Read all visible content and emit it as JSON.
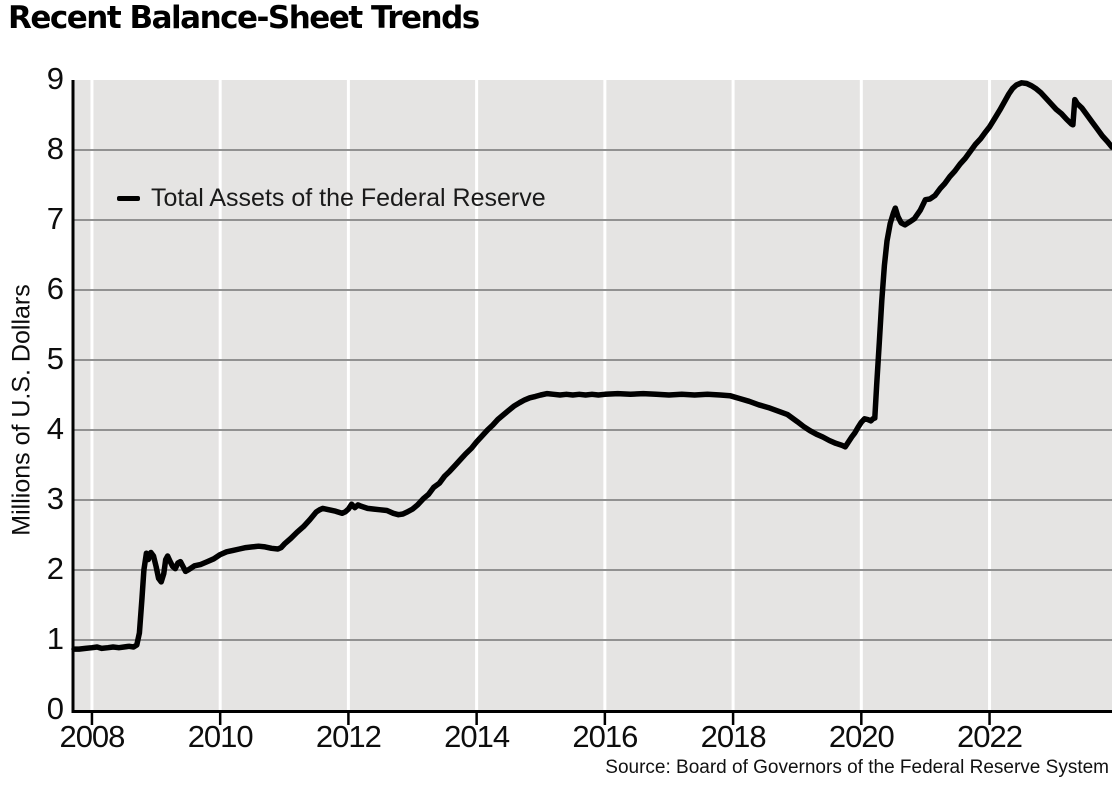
{
  "chart": {
    "title": "Recent Balance-Sheet Trends",
    "ylabel": "Millions of U.S. Dollars",
    "series_label": "Total Assets of the Federal Reserve",
    "source": "Source: Board of Governors of the Federal Reserve System"
  },
  "chart_data": {
    "type": "line",
    "title": "Recent Balance-Sheet Trends",
    "xlabel": "",
    "ylabel": "Millions of U.S. Dollars",
    "xlim": [
      2007.72,
      2023.91
    ],
    "ylim": [
      0,
      9
    ],
    "x_ticks": [
      2008,
      2010,
      2012,
      2014,
      2016,
      2018,
      2020,
      2022
    ],
    "y_ticks": [
      0,
      1,
      2,
      3,
      4,
      5,
      6,
      7,
      8,
      9
    ],
    "grid": {
      "horizontal": true,
      "vertical": true
    },
    "legend": {
      "position": "upper-left-inside",
      "entries": [
        "Total Assets of the Federal Reserve"
      ]
    },
    "source": "Source: Board of Governors of the Federal Reserve System",
    "colors": {
      "plot_background": "#e5e4e3",
      "horizontal_grid": "#919191",
      "vertical_grid": "#ffffff",
      "axis": "#000000",
      "line": "#000000",
      "text": "#0d0d0d"
    },
    "series": [
      {
        "name": "Total Assets of the Federal Reserve",
        "color": "#000000",
        "points": [
          [
            2007.72,
            0.87
          ],
          [
            2007.8,
            0.87
          ],
          [
            2007.9,
            0.88
          ],
          [
            2008.0,
            0.89
          ],
          [
            2008.08,
            0.9
          ],
          [
            2008.15,
            0.88
          ],
          [
            2008.25,
            0.89
          ],
          [
            2008.33,
            0.9
          ],
          [
            2008.42,
            0.89
          ],
          [
            2008.5,
            0.9
          ],
          [
            2008.58,
            0.91
          ],
          [
            2008.65,
            0.9
          ],
          [
            2008.7,
            0.93
          ],
          [
            2008.74,
            1.1
          ],
          [
            2008.78,
            1.6
          ],
          [
            2008.81,
            2.0
          ],
          [
            2008.85,
            2.24
          ],
          [
            2008.88,
            2.15
          ],
          [
            2008.92,
            2.25
          ],
          [
            2008.96,
            2.2
          ],
          [
            2009.0,
            2.05
          ],
          [
            2009.04,
            1.88
          ],
          [
            2009.08,
            1.83
          ],
          [
            2009.12,
            1.95
          ],
          [
            2009.15,
            2.15
          ],
          [
            2009.18,
            2.2
          ],
          [
            2009.22,
            2.12
          ],
          [
            2009.26,
            2.05
          ],
          [
            2009.3,
            2.02
          ],
          [
            2009.34,
            2.1
          ],
          [
            2009.38,
            2.12
          ],
          [
            2009.42,
            2.05
          ],
          [
            2009.46,
            1.98
          ],
          [
            2009.5,
            2.0
          ],
          [
            2009.55,
            2.03
          ],
          [
            2009.6,
            2.06
          ],
          [
            2009.7,
            2.08
          ],
          [
            2009.8,
            2.12
          ],
          [
            2009.9,
            2.16
          ],
          [
            2010.0,
            2.22
          ],
          [
            2010.1,
            2.26
          ],
          [
            2010.2,
            2.28
          ],
          [
            2010.3,
            2.3
          ],
          [
            2010.4,
            2.32
          ],
          [
            2010.5,
            2.33
          ],
          [
            2010.6,
            2.34
          ],
          [
            2010.7,
            2.33
          ],
          [
            2010.8,
            2.31
          ],
          [
            2010.9,
            2.3
          ],
          [
            2010.95,
            2.32
          ],
          [
            2011.0,
            2.37
          ],
          [
            2011.1,
            2.45
          ],
          [
            2011.2,
            2.54
          ],
          [
            2011.3,
            2.62
          ],
          [
            2011.4,
            2.72
          ],
          [
            2011.5,
            2.83
          ],
          [
            2011.55,
            2.86
          ],
          [
            2011.6,
            2.88
          ],
          [
            2011.7,
            2.86
          ],
          [
            2011.8,
            2.84
          ],
          [
            2011.9,
            2.81
          ],
          [
            2011.95,
            2.83
          ],
          [
            2012.0,
            2.87
          ],
          [
            2012.05,
            2.94
          ],
          [
            2012.1,
            2.89
          ],
          [
            2012.15,
            2.93
          ],
          [
            2012.2,
            2.91
          ],
          [
            2012.3,
            2.88
          ],
          [
            2012.4,
            2.87
          ],
          [
            2012.5,
            2.86
          ],
          [
            2012.6,
            2.85
          ],
          [
            2012.7,
            2.81
          ],
          [
            2012.78,
            2.79
          ],
          [
            2012.85,
            2.8
          ],
          [
            2012.92,
            2.83
          ],
          [
            2013.0,
            2.87
          ],
          [
            2013.08,
            2.93
          ],
          [
            2013.17,
            3.02
          ],
          [
            2013.25,
            3.08
          ],
          [
            2013.33,
            3.18
          ],
          [
            2013.42,
            3.24
          ],
          [
            2013.5,
            3.34
          ],
          [
            2013.58,
            3.41
          ],
          [
            2013.67,
            3.5
          ],
          [
            2013.75,
            3.58
          ],
          [
            2013.83,
            3.66
          ],
          [
            2013.92,
            3.74
          ],
          [
            2014.0,
            3.83
          ],
          [
            2014.08,
            3.91
          ],
          [
            2014.17,
            4.0
          ],
          [
            2014.25,
            4.07
          ],
          [
            2014.33,
            4.15
          ],
          [
            2014.42,
            4.22
          ],
          [
            2014.5,
            4.28
          ],
          [
            2014.58,
            4.34
          ],
          [
            2014.67,
            4.39
          ],
          [
            2014.75,
            4.43
          ],
          [
            2014.83,
            4.46
          ],
          [
            2014.92,
            4.48
          ],
          [
            2015.0,
            4.5
          ],
          [
            2015.1,
            4.52
          ],
          [
            2015.2,
            4.51
          ],
          [
            2015.3,
            4.5
          ],
          [
            2015.4,
            4.51
          ],
          [
            2015.5,
            4.5
          ],
          [
            2015.6,
            4.51
          ],
          [
            2015.7,
            4.5
          ],
          [
            2015.8,
            4.51
          ],
          [
            2015.9,
            4.5
          ],
          [
            2016.0,
            4.51
          ],
          [
            2016.2,
            4.52
          ],
          [
            2016.4,
            4.51
          ],
          [
            2016.6,
            4.52
          ],
          [
            2016.8,
            4.51
          ],
          [
            2017.0,
            4.5
          ],
          [
            2017.2,
            4.51
          ],
          [
            2017.4,
            4.5
          ],
          [
            2017.6,
            4.51
          ],
          [
            2017.8,
            4.5
          ],
          [
            2017.95,
            4.49
          ],
          [
            2018.1,
            4.45
          ],
          [
            2018.25,
            4.41
          ],
          [
            2018.4,
            4.36
          ],
          [
            2018.55,
            4.32
          ],
          [
            2018.7,
            4.27
          ],
          [
            2018.85,
            4.22
          ],
          [
            2019.0,
            4.12
          ],
          [
            2019.1,
            4.05
          ],
          [
            2019.2,
            3.99
          ],
          [
            2019.3,
            3.94
          ],
          [
            2019.4,
            3.9
          ],
          [
            2019.5,
            3.85
          ],
          [
            2019.6,
            3.81
          ],
          [
            2019.7,
            3.78
          ],
          [
            2019.75,
            3.76
          ],
          [
            2019.8,
            3.83
          ],
          [
            2019.85,
            3.9
          ],
          [
            2019.9,
            3.96
          ],
          [
            2019.95,
            4.04
          ],
          [
            2020.0,
            4.11
          ],
          [
            2020.05,
            4.16
          ],
          [
            2020.1,
            4.15
          ],
          [
            2020.15,
            4.13
          ],
          [
            2020.18,
            4.16
          ],
          [
            2020.21,
            4.17
          ],
          [
            2020.24,
            4.65
          ],
          [
            2020.28,
            5.25
          ],
          [
            2020.32,
            5.85
          ],
          [
            2020.36,
            6.35
          ],
          [
            2020.4,
            6.7
          ],
          [
            2020.45,
            6.95
          ],
          [
            2020.5,
            7.1
          ],
          [
            2020.53,
            7.17
          ],
          [
            2020.57,
            7.05
          ],
          [
            2020.62,
            6.96
          ],
          [
            2020.68,
            6.93
          ],
          [
            2020.75,
            6.97
          ],
          [
            2020.83,
            7.02
          ],
          [
            2020.92,
            7.14
          ],
          [
            2021.0,
            7.29
          ],
          [
            2021.07,
            7.3
          ],
          [
            2021.15,
            7.35
          ],
          [
            2021.23,
            7.45
          ],
          [
            2021.3,
            7.52
          ],
          [
            2021.38,
            7.62
          ],
          [
            2021.46,
            7.7
          ],
          [
            2021.54,
            7.8
          ],
          [
            2021.62,
            7.88
          ],
          [
            2021.7,
            7.98
          ],
          [
            2021.78,
            8.08
          ],
          [
            2021.86,
            8.16
          ],
          [
            2021.94,
            8.26
          ],
          [
            2022.0,
            8.33
          ],
          [
            2022.08,
            8.45
          ],
          [
            2022.16,
            8.57
          ],
          [
            2022.24,
            8.7
          ],
          [
            2022.3,
            8.8
          ],
          [
            2022.36,
            8.88
          ],
          [
            2022.42,
            8.93
          ],
          [
            2022.5,
            8.96
          ],
          [
            2022.58,
            8.95
          ],
          [
            2022.65,
            8.92
          ],
          [
            2022.72,
            8.88
          ],
          [
            2022.8,
            8.82
          ],
          [
            2022.88,
            8.74
          ],
          [
            2022.96,
            8.66
          ],
          [
            2023.04,
            8.58
          ],
          [
            2023.12,
            8.52
          ],
          [
            2023.2,
            8.44
          ],
          [
            2023.28,
            8.37
          ],
          [
            2023.3,
            8.36
          ],
          [
            2023.33,
            8.72
          ],
          [
            2023.37,
            8.66
          ],
          [
            2023.44,
            8.6
          ],
          [
            2023.52,
            8.5
          ],
          [
            2023.6,
            8.4
          ],
          [
            2023.68,
            8.3
          ],
          [
            2023.76,
            8.2
          ],
          [
            2023.84,
            8.12
          ],
          [
            2023.91,
            8.04
          ]
        ]
      }
    ]
  }
}
